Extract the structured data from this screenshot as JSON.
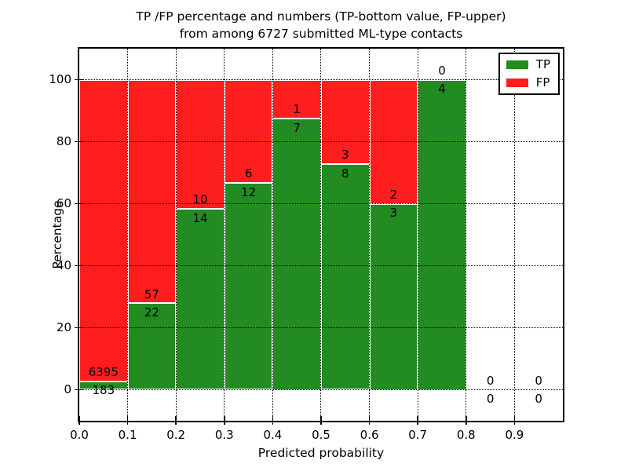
{
  "title": {
    "line1": "TP /FP percentage and numbers (TP-bottom value, FP-upper)",
    "line2": "from among 6727 submitted ML-type contacts"
  },
  "axes": {
    "xlabel": "Predicted probability",
    "ylabel": "Percentage",
    "x_tick_labels": [
      "0.0",
      "0.1",
      "0.2",
      "0.3",
      "0.4",
      "0.5",
      "0.6",
      "0.7",
      "0.8",
      "0.9"
    ],
    "x_tick_values": [
      0,
      0.1,
      0.2,
      0.3,
      0.4,
      0.5,
      0.6,
      0.7,
      0.8,
      0.9
    ],
    "y_ticks": [
      0,
      20,
      40,
      60,
      80,
      100
    ],
    "xlim": [
      0,
      1.0
    ],
    "ylim": [
      -10,
      110
    ],
    "grid": "dotted"
  },
  "legend": {
    "position": "upper-right",
    "items": [
      {
        "label": "TP",
        "color": "#228B22"
      },
      {
        "label": "FP",
        "color": "#FF1E1E"
      }
    ]
  },
  "chart_data": {
    "type": "bar",
    "stacked": true,
    "title": "TP /FP percentage and numbers (TP-bottom value, FP-upper) from among 6727 submitted ML-type contacts",
    "xlabel": "Predicted probability",
    "ylabel": "Percentage",
    "ylim": [
      -10,
      110
    ],
    "xlim": [
      0,
      1.0
    ],
    "bin_width": 0.1,
    "total_contacts": 6727,
    "label_rule": "TP count below segment boundary, FP count above segment boundary",
    "colors": {
      "tp": "#228B22",
      "fp": "#FF1E1E"
    },
    "bins": [
      {
        "x0": 0.0,
        "x1": 0.1,
        "tp": 183,
        "fp": 6395,
        "tp_pct": 2.78,
        "fp_pct": 97.22
      },
      {
        "x0": 0.1,
        "x1": 0.2,
        "tp": 22,
        "fp": 57,
        "tp_pct": 27.85,
        "fp_pct": 72.15
      },
      {
        "x0": 0.2,
        "x1": 0.3,
        "tp": 14,
        "fp": 10,
        "tp_pct": 58.33,
        "fp_pct": 41.67
      },
      {
        "x0": 0.3,
        "x1": 0.4,
        "tp": 12,
        "fp": 6,
        "tp_pct": 66.67,
        "fp_pct": 33.33
      },
      {
        "x0": 0.4,
        "x1": 0.5,
        "tp": 7,
        "fp": 1,
        "tp_pct": 87.5,
        "fp_pct": 12.5
      },
      {
        "x0": 0.5,
        "x1": 0.6,
        "tp": 8,
        "fp": 3,
        "tp_pct": 72.73,
        "fp_pct": 27.27
      },
      {
        "x0": 0.6,
        "x1": 0.7,
        "tp": 3,
        "fp": 2,
        "tp_pct": 60.0,
        "fp_pct": 40.0
      },
      {
        "x0": 0.7,
        "x1": 0.8,
        "tp": 4,
        "fp": 0,
        "tp_pct": 100.0,
        "fp_pct": 0.0
      },
      {
        "x0": 0.8,
        "x1": 0.9,
        "tp": 0,
        "fp": 0,
        "tp_pct": null,
        "fp_pct": null
      },
      {
        "x0": 0.9,
        "x1": 1.0,
        "tp": 0,
        "fp": 0,
        "tp_pct": null,
        "fp_pct": null
      }
    ]
  }
}
